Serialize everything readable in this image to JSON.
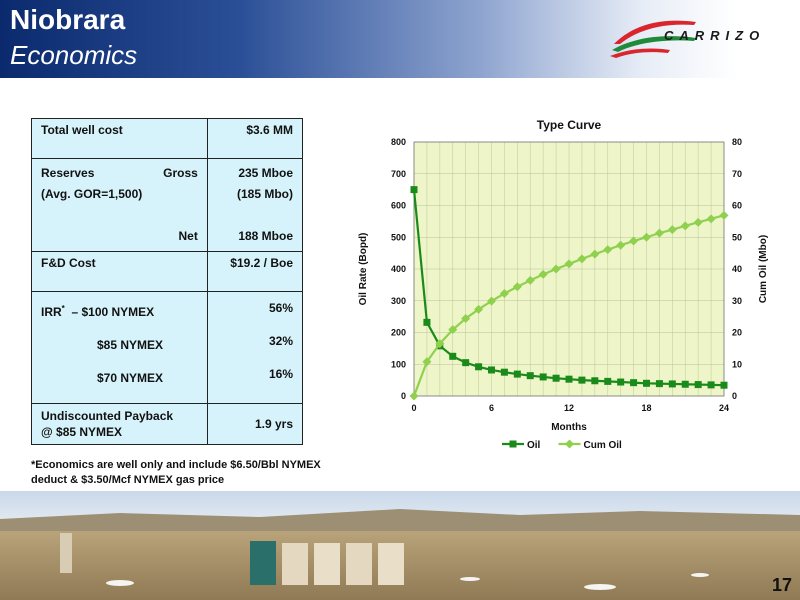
{
  "header": {
    "title": "Niobrara",
    "subtitle": "Economics"
  },
  "logo": {
    "text": "CARRIZO",
    "colors": {
      "red": "#d9252b",
      "green": "#1f8a3a"
    }
  },
  "economics": {
    "total_well_cost": {
      "label": "Total well cost",
      "value": "$3.6 MM"
    },
    "reserves": {
      "label": "Reserves",
      "gross_label": "Gross",
      "gor_label": "(Avg. GOR=1,500)",
      "gross_value": "235 Mboe",
      "gross_oil": "(185 Mbo)",
      "net_label": "Net",
      "net_value": "188 Mboe"
    },
    "fd_cost": {
      "label": "F&D Cost",
      "value": "$19.2 / Boe"
    },
    "irr": {
      "label": "IRR",
      "footnote_mark": "*",
      "rows": [
        {
          "label": "– $100 NYMEX",
          "value": "56%"
        },
        {
          "label": "$85 NYMEX",
          "value": "32%"
        },
        {
          "label": "$70 NYMEX",
          "value": "16%"
        }
      ]
    },
    "payback": {
      "label_1": "Undiscounted Payback",
      "label_2": "@ $85 NYMEX",
      "value": "1.9 yrs"
    }
  },
  "footnote": "*Economics are well only and include $6.50/Bbl NYMEX deduct & $3.50/Mcf NYMEX gas price",
  "page_number": "17",
  "chart_data": {
    "type": "line",
    "title": "Type Curve",
    "xlabel": "Months",
    "ylabel": "Oil Rate (Bopd)",
    "y2label": "Cum Oil (Mbo)",
    "xlim": [
      0,
      24
    ],
    "ylim": [
      0,
      800
    ],
    "y2lim": [
      0,
      80
    ],
    "xticks": [
      "0",
      "6",
      "12",
      "18",
      "24"
    ],
    "yticks": [
      "0",
      "100",
      "200",
      "300",
      "400",
      "500",
      "600",
      "700",
      "800"
    ],
    "y2ticks": [
      "0",
      "10",
      "20",
      "30",
      "40",
      "50",
      "60",
      "70",
      "80"
    ],
    "grid": true,
    "legend_position": "bottom",
    "x": [
      0,
      1,
      2,
      3,
      4,
      5,
      6,
      7,
      8,
      9,
      10,
      11,
      12,
      13,
      14,
      15,
      16,
      17,
      18,
      19,
      20,
      21,
      22,
      23,
      24
    ],
    "series": [
      {
        "name": "Oil",
        "axis": "left",
        "color": "#1a8a1a",
        "marker": "square",
        "values": [
          650,
          232,
          158,
          125,
          105,
          92,
          82,
          75,
          69,
          64,
          60,
          56,
          53,
          50,
          48,
          46,
          44,
          42,
          40,
          39,
          38,
          37,
          36,
          35,
          34
        ]
      },
      {
        "name": "Cum Oil",
        "axis": "right",
        "color": "#8fd14f",
        "marker": "diamond",
        "values": [
          0,
          10.8,
          16.5,
          20.9,
          24.4,
          27.3,
          29.9,
          32.3,
          34.4,
          36.4,
          38.3,
          40.0,
          41.6,
          43.2,
          44.7,
          46.1,
          47.5,
          48.8,
          50.0,
          51.3,
          52.4,
          53.6,
          54.7,
          55.8,
          56.9
        ]
      }
    ]
  }
}
